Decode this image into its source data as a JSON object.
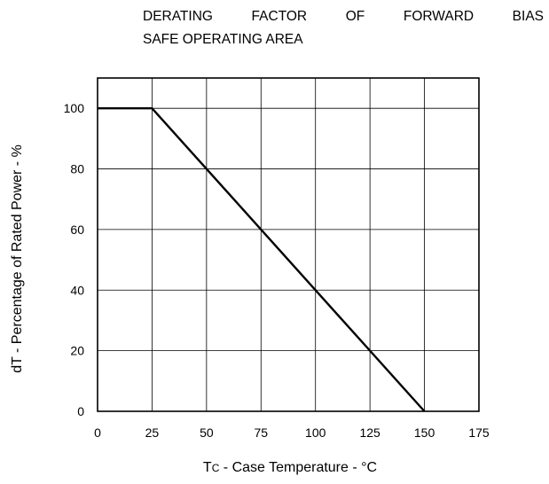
{
  "title_words": [
    "DERATING",
    "FACTOR",
    "OF",
    "FORWARD",
    "BIAS"
  ],
  "title_line2": "SAFE OPERATING AREA",
  "chart_data": {
    "type": "line",
    "title": "DERATING FACTOR OF FORWARD BIAS SAFE OPERATING AREA",
    "xlabel_main": "T",
    "xlabel_sub": "C",
    "xlabel_rest": " - Case Temperature - °C",
    "ylabel": "dT - Percentage of Rated Power - %",
    "xlim": [
      0,
      175
    ],
    "ylim": [
      0,
      110
    ],
    "xticks": [
      0,
      25,
      50,
      75,
      100,
      125,
      150,
      175
    ],
    "yticks": [
      0,
      20,
      40,
      60,
      80,
      100
    ],
    "grid": true,
    "series": [
      {
        "x": [
          0,
          25,
          150
        ],
        "y": [
          100,
          100,
          0
        ]
      }
    ]
  }
}
